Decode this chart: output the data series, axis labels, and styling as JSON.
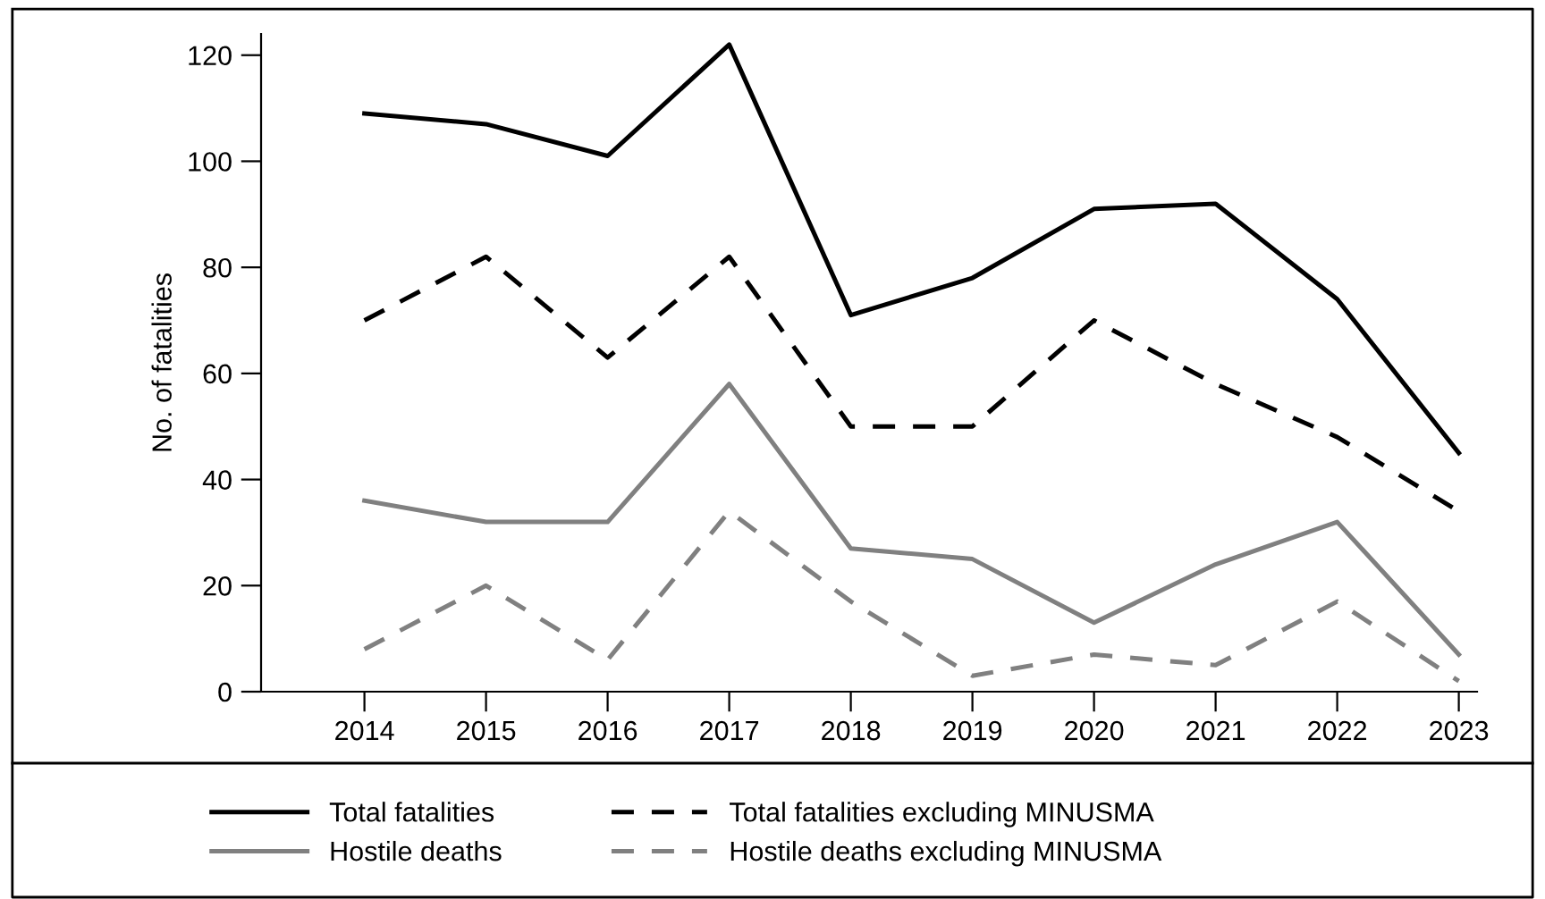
{
  "chart_data": {
    "type": "line",
    "ylabel": "No. of fatalities",
    "categories": [
      "2014",
      "2015",
      "2016",
      "2017",
      "2018",
      "2019",
      "2020",
      "2021",
      "2022",
      "2023"
    ],
    "ylim": [
      0,
      124
    ],
    "yticks": [
      0,
      20,
      40,
      60,
      80,
      100,
      120
    ],
    "grid": false,
    "legend": "bottom",
    "series": [
      {
        "name": "Total fatalities",
        "color": "#000000",
        "line_style": "solid",
        "values": [
          109,
          107,
          101,
          122,
          71,
          78,
          91,
          92,
          74,
          45
        ]
      },
      {
        "name": "Hostile deaths",
        "color": "#808080",
        "line_style": "solid",
        "values": [
          36,
          32,
          32,
          58,
          27,
          25,
          13,
          24,
          32,
          7
        ]
      },
      {
        "name": "Total fatalities excluding MINUSMA",
        "color": "#000000",
        "line_style": "dashed",
        "values": [
          70,
          82,
          63,
          82,
          50,
          50,
          70,
          58,
          48,
          34
        ]
      },
      {
        "name": "Hostile deaths excluding MINUSMA",
        "color": "#808080",
        "line_style": "dashed",
        "values": [
          8,
          20,
          6,
          34,
          17,
          3,
          7,
          5,
          17,
          2
        ]
      }
    ]
  }
}
